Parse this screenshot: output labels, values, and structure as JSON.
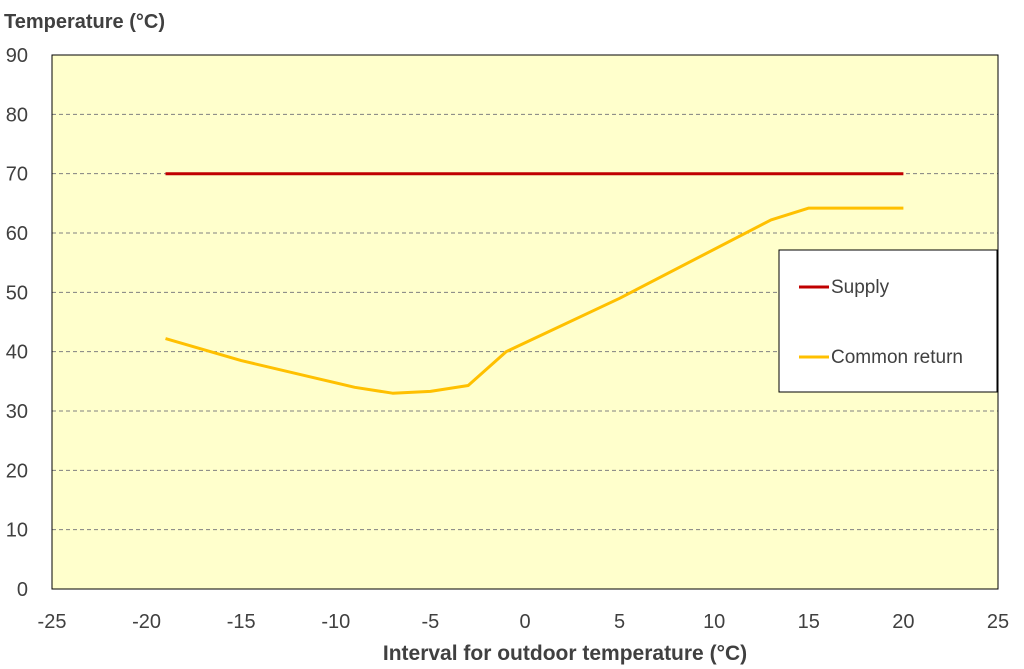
{
  "chart_data": {
    "type": "line",
    "title": "",
    "ylabel": "Temperature (°C)",
    "xlabel": "Interval for outdoor temperature (°C)",
    "xlim": [
      -25,
      25
    ],
    "ylim": [
      0,
      90
    ],
    "xticks": [
      -25,
      -20,
      -15,
      -10,
      -5,
      0,
      5,
      10,
      15,
      20,
      25
    ],
    "yticks": [
      0,
      10,
      20,
      30,
      40,
      50,
      60,
      70,
      80,
      90
    ],
    "grid": "horizontal dashed",
    "legend_position": "right",
    "plot_background": "#FFFFCC",
    "series": [
      {
        "name": "Supply",
        "color": "#C00000",
        "x": [
          -19,
          20
        ],
        "y": [
          70,
          70
        ]
      },
      {
        "name": "Common return",
        "color": "#FFC000",
        "x": [
          -19,
          -15,
          -11,
          -9,
          -7,
          -5,
          -3,
          -1,
          5,
          13,
          15,
          20
        ],
        "y": [
          42.2,
          38.5,
          35.5,
          34,
          33,
          33.3,
          34.3,
          40,
          49,
          62.2,
          64.2,
          64.2
        ]
      }
    ]
  }
}
